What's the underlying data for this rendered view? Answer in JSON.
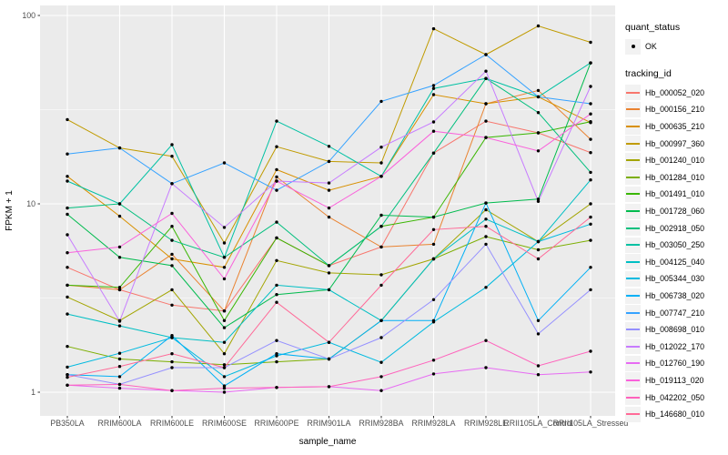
{
  "figure": {
    "background": "#FFFFFF",
    "panel_background": "#EBEBEB",
    "grid_color": "#FFFFFF",
    "point_color": "#000000",
    "axis_text_color": "#4D4D4D",
    "tick_mark_color": "#333333",
    "legend_key_background": "#F2F2F2"
  },
  "axes": {
    "y_title": "FPKM + 1",
    "x_title": "sample_name",
    "y_tick_labels": [
      "1",
      "10",
      "100"
    ],
    "y_tick_values": [
      1,
      10,
      100
    ],
    "y_minor_values": [
      3.1623,
      31.623
    ],
    "y_scale": "log10"
  },
  "legend": {
    "quant_status_title": "quant_status",
    "quant_status_items": [
      {
        "label": "OK",
        "marker": "point"
      }
    ],
    "tracking_id_title": "tracking_id"
  },
  "chart_data": {
    "type": "line",
    "title": "",
    "xlabel": "sample_name",
    "ylabel": "FPKM + 1",
    "y_scale": "log10",
    "ylim": [
      1,
      113
    ],
    "grid": true,
    "legend_position": "right",
    "marker": "black point on every value (quant_status = OK)",
    "categories": [
      "PB350LA",
      "RRIM600LA",
      "RRIM600LE",
      "RRIM600SE",
      "RRIM600PE",
      "RRIM901LA",
      "RRIM928BA",
      "RRIM928LA",
      "RRIM928LE",
      "RRII105LA_Control",
      "RRII105LA_Stressed"
    ],
    "series": [
      {
        "name": "Hb_000052_020",
        "color": "#F8766D",
        "values": [
          4.6,
          3.5,
          2.9,
          2.7,
          6.6,
          4.7,
          5.9,
          18.6,
          27.5,
          23.8,
          18.7
        ]
      },
      {
        "name": "Hb_000156_210",
        "color": "#EA8331",
        "values": [
          3.7,
          3.5,
          5.4,
          2.7,
          13.9,
          8.5,
          5.9,
          6.1,
          34,
          40,
          22
        ]
      },
      {
        "name": "Hb_000635_210",
        "color": "#D89000",
        "values": [
          14,
          8.6,
          5.1,
          4.6,
          15.2,
          11.8,
          14,
          38,
          34,
          37,
          27
        ]
      },
      {
        "name": "Hb_000997_360",
        "color": "#C09B00",
        "values": [
          28,
          19.8,
          17.9,
          6.2,
          20.1,
          16.8,
          16.5,
          85,
          62,
          88,
          72
        ]
      },
      {
        "name": "Hb_001240_010",
        "color": "#A3A500",
        "values": [
          3.2,
          2.4,
          3.5,
          1.6,
          5.0,
          4.3,
          4.2,
          5.1,
          9.3,
          6.3,
          10
        ]
      },
      {
        "name": "Hb_001284_010",
        "color": "#7CAE00",
        "values": [
          1.75,
          1.5,
          1.45,
          1.4,
          1.45,
          1.5,
          2.4,
          5.1,
          6.7,
          5.7,
          6.4
        ]
      },
      {
        "name": "Hb_001491_010",
        "color": "#39B600",
        "values": [
          3.7,
          3.6,
          7.6,
          2.4,
          6.6,
          4.7,
          7.6,
          8.5,
          22.5,
          23.8,
          27.3
        ]
      },
      {
        "name": "Hb_001728_060",
        "color": "#00BB4E",
        "values": [
          8.8,
          5.2,
          4.7,
          2.2,
          3.3,
          3.5,
          8.7,
          8.5,
          10.1,
          10.6,
          56
        ]
      },
      {
        "name": "Hb_002918_050",
        "color": "#00BF7D",
        "values": [
          9.5,
          10.0,
          6.4,
          5.2,
          8.0,
          4.7,
          7.6,
          18.6,
          46.3,
          30.5,
          14.7
        ]
      },
      {
        "name": "Hb_003050_250",
        "color": "#00C1A3",
        "values": [
          13.2,
          10.0,
          20.6,
          5.2,
          27.5,
          20.2,
          14,
          41,
          46.3,
          37,
          56
        ]
      },
      {
        "name": "Hb_004125_040",
        "color": "#00BFC4",
        "values": [
          2.6,
          2.25,
          1.95,
          1.84,
          3.7,
          3.5,
          2.4,
          5.1,
          8.3,
          6.3,
          13.4
        ]
      },
      {
        "name": "Hb_005344_030",
        "color": "#00BAE0",
        "values": [
          1.36,
          1.61,
          1.95,
          1.21,
          1.56,
          1.84,
          1.44,
          2.36,
          3.6,
          6.3,
          7.8
        ]
      },
      {
        "name": "Hb_006738_020",
        "color": "#00B0F6",
        "values": [
          1.24,
          1.21,
          2.0,
          1.08,
          1.6,
          1.5,
          2.4,
          2.4,
          10.1,
          2.4,
          4.6
        ]
      },
      {
        "name": "Hb_007747_210",
        "color": "#35A2FF",
        "values": [
          18.4,
          19.8,
          12.8,
          16.5,
          11.8,
          16.8,
          35,
          42.5,
          62,
          37,
          34
        ]
      },
      {
        "name": "Hb_008698_010",
        "color": "#9590FF",
        "values": [
          1.24,
          1.1,
          1.35,
          1.35,
          1.88,
          1.5,
          1.95,
          3.1,
          6.1,
          2.04,
          3.5
        ]
      },
      {
        "name": "Hb_012022_170",
        "color": "#C77CFF",
        "values": [
          6.85,
          2.38,
          12.8,
          7.5,
          13.2,
          12.9,
          20,
          27.2,
          50.6,
          10.3,
          42
        ]
      },
      {
        "name": "Hb_012760_190",
        "color": "#E76BF3",
        "values": [
          1.09,
          1.05,
          1.02,
          1.0,
          1.06,
          1.07,
          1.02,
          1.25,
          1.35,
          1.24,
          1.28
        ]
      },
      {
        "name": "Hb_019113_020",
        "color": "#FA62DB",
        "values": [
          5.5,
          5.9,
          8.9,
          4.0,
          13.2,
          9.5,
          14,
          24.3,
          22.5,
          19.1,
          30
        ]
      },
      {
        "name": "Hb_042202_050",
        "color": "#FF62BC",
        "values": [
          1.09,
          1.1,
          1.02,
          1.05,
          1.06,
          1.07,
          1.21,
          1.48,
          1.88,
          1.38,
          1.65
        ]
      },
      {
        "name": "Hb_146680_010",
        "color": "#FF6A98",
        "values": [
          1.2,
          1.37,
          1.6,
          1.35,
          3.0,
          1.84,
          3.7,
          7.3,
          7.6,
          5.1,
          8.5
        ]
      }
    ]
  }
}
